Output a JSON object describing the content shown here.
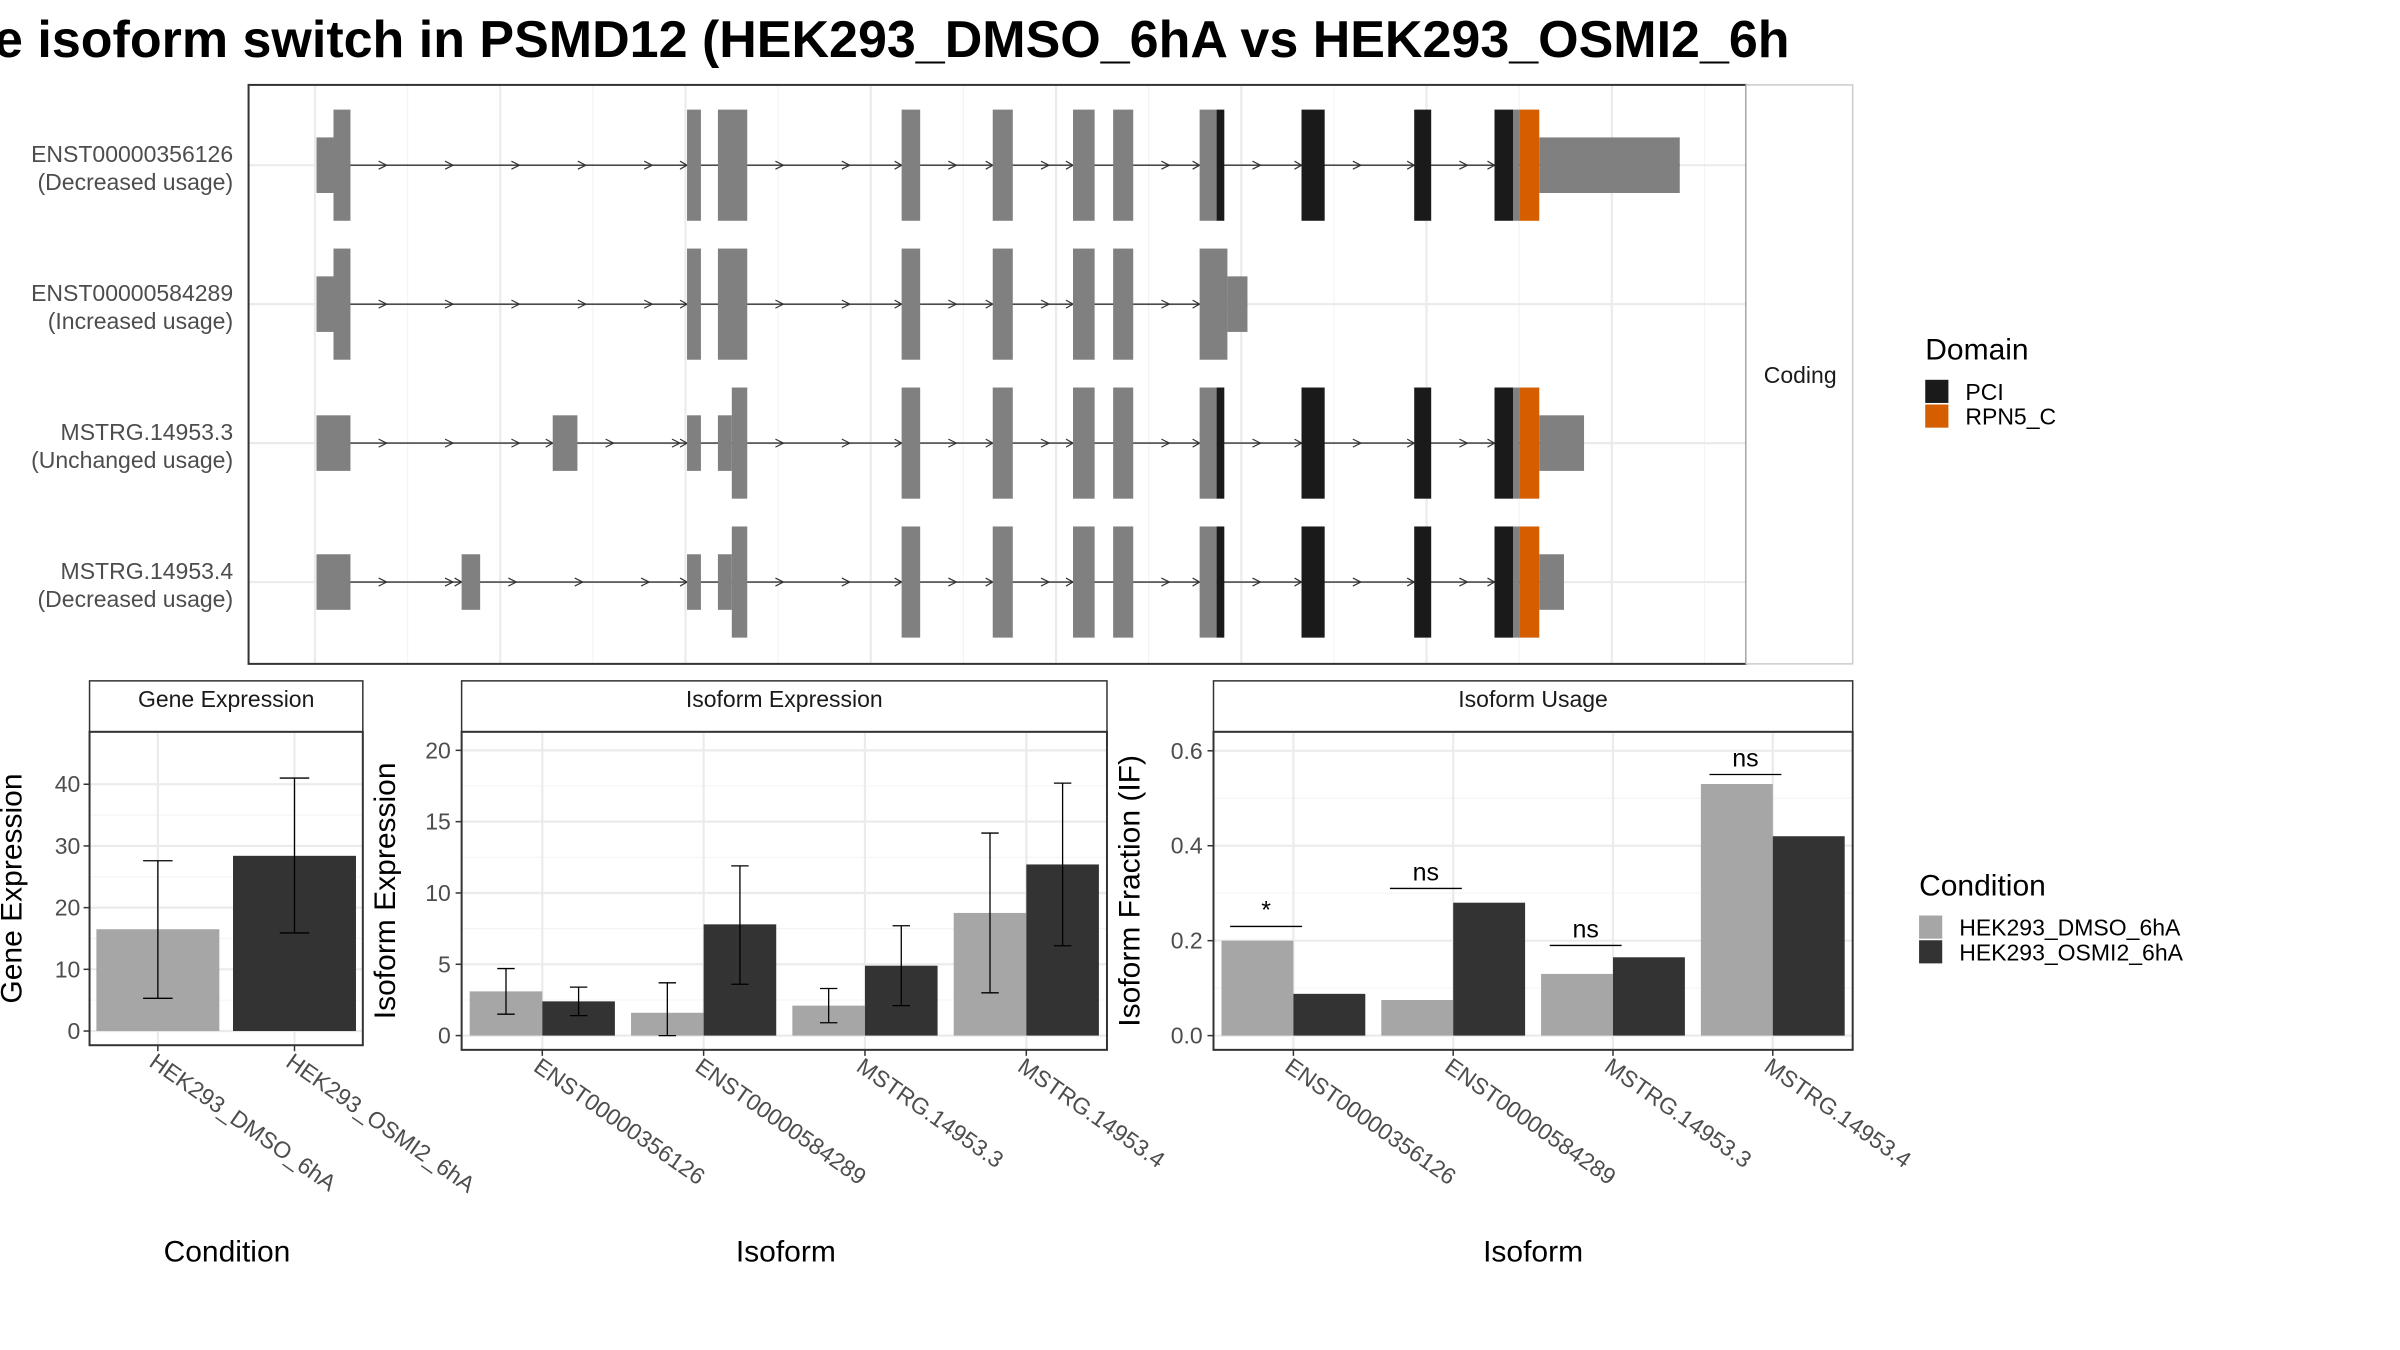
{
  "figure": {
    "title": "e isoform switch in PSMD12 (HEK293_DMSO_6hA vs HEK293_OSMI2_6h"
  },
  "structure": {
    "facet_label": "Coding",
    "domain_legend": {
      "title": "Domain",
      "items": [
        {
          "label": "PCI",
          "color": "#1a1a1a"
        },
        {
          "label": "RPN5_C",
          "color": "#d55e00"
        }
      ]
    },
    "colors": {
      "exon": "#808080",
      "intron": "#333333"
    },
    "transcripts": [
      {
        "id": "ENST00000356126",
        "usage": "(Decreased usage)",
        "exons": [
          {
            "start": 205,
            "end": 216,
            "kind": "utr"
          },
          {
            "start": 216,
            "end": 227,
            "kind": "cds"
          },
          {
            "start": 445,
            "end": 454,
            "kind": "cds"
          },
          {
            "start": 465,
            "end": 484,
            "kind": "cds"
          },
          {
            "start": 584,
            "end": 596,
            "kind": "cds"
          },
          {
            "start": 643,
            "end": 656,
            "kind": "cds"
          },
          {
            "start": 695,
            "end": 709,
            "kind": "cds"
          },
          {
            "start": 721,
            "end": 734,
            "kind": "cds"
          },
          {
            "start": 777,
            "end": 788,
            "kind": "cds"
          },
          {
            "start": 788,
            "end": 793,
            "kind": "cds",
            "domain": "PCI"
          },
          {
            "start": 843,
            "end": 858,
            "kind": "cds",
            "domain": "PCI"
          },
          {
            "start": 916,
            "end": 927,
            "kind": "cds",
            "domain": "PCI"
          },
          {
            "start": 968,
            "end": 980,
            "kind": "cds",
            "domain": "PCI"
          },
          {
            "start": 980,
            "end": 984,
            "kind": "cds"
          },
          {
            "start": 984,
            "end": 997,
            "kind": "cds",
            "domain": "RPN5_C"
          },
          {
            "start": 997,
            "end": 1088,
            "kind": "utr"
          }
        ]
      },
      {
        "id": "ENST00000584289",
        "usage": "(Increased usage)",
        "exons": [
          {
            "start": 205,
            "end": 216,
            "kind": "utr"
          },
          {
            "start": 216,
            "end": 227,
            "kind": "cds"
          },
          {
            "start": 445,
            "end": 454,
            "kind": "cds"
          },
          {
            "start": 465,
            "end": 484,
            "kind": "cds"
          },
          {
            "start": 584,
            "end": 596,
            "kind": "cds"
          },
          {
            "start": 643,
            "end": 656,
            "kind": "cds"
          },
          {
            "start": 695,
            "end": 709,
            "kind": "cds"
          },
          {
            "start": 721,
            "end": 734,
            "kind": "cds"
          },
          {
            "start": 777,
            "end": 795,
            "kind": "cds"
          },
          {
            "start": 795,
            "end": 808,
            "kind": "utr"
          }
        ]
      },
      {
        "id": "MSTRG.14953.3",
        "usage": "(Unchanged usage)",
        "exons": [
          {
            "start": 205,
            "end": 227,
            "kind": "utr"
          },
          {
            "start": 358,
            "end": 374,
            "kind": "utr"
          },
          {
            "start": 445,
            "end": 454,
            "kind": "utr"
          },
          {
            "start": 465,
            "end": 474,
            "kind": "utr"
          },
          {
            "start": 474,
            "end": 484,
            "kind": "cds"
          },
          {
            "start": 584,
            "end": 596,
            "kind": "cds"
          },
          {
            "start": 643,
            "end": 656,
            "kind": "cds"
          },
          {
            "start": 695,
            "end": 709,
            "kind": "cds"
          },
          {
            "start": 721,
            "end": 734,
            "kind": "cds"
          },
          {
            "start": 777,
            "end": 788,
            "kind": "cds"
          },
          {
            "start": 788,
            "end": 793,
            "kind": "cds",
            "domain": "PCI"
          },
          {
            "start": 843,
            "end": 858,
            "kind": "cds",
            "domain": "PCI"
          },
          {
            "start": 916,
            "end": 927,
            "kind": "cds",
            "domain": "PCI"
          },
          {
            "start": 968,
            "end": 980,
            "kind": "cds",
            "domain": "PCI"
          },
          {
            "start": 980,
            "end": 984,
            "kind": "cds"
          },
          {
            "start": 984,
            "end": 997,
            "kind": "cds",
            "domain": "RPN5_C"
          },
          {
            "start": 997,
            "end": 1026,
            "kind": "utr"
          }
        ]
      },
      {
        "id": "MSTRG.14953.4",
        "usage": "(Decreased usage)",
        "exons": [
          {
            "start": 205,
            "end": 227,
            "kind": "utr"
          },
          {
            "start": 299,
            "end": 311,
            "kind": "utr"
          },
          {
            "start": 445,
            "end": 454,
            "kind": "utr"
          },
          {
            "start": 465,
            "end": 474,
            "kind": "utr"
          },
          {
            "start": 474,
            "end": 484,
            "kind": "cds"
          },
          {
            "start": 584,
            "end": 596,
            "kind": "cds"
          },
          {
            "start": 643,
            "end": 656,
            "kind": "cds"
          },
          {
            "start": 695,
            "end": 709,
            "kind": "cds"
          },
          {
            "start": 721,
            "end": 734,
            "kind": "cds"
          },
          {
            "start": 777,
            "end": 788,
            "kind": "cds"
          },
          {
            "start": 788,
            "end": 793,
            "kind": "cds",
            "domain": "PCI"
          },
          {
            "start": 843,
            "end": 858,
            "kind": "cds",
            "domain": "PCI"
          },
          {
            "start": 916,
            "end": 927,
            "kind": "cds",
            "domain": "PCI"
          },
          {
            "start": 968,
            "end": 980,
            "kind": "cds",
            "domain": "PCI"
          },
          {
            "start": 980,
            "end": 984,
            "kind": "cds"
          },
          {
            "start": 984,
            "end": 997,
            "kind": "cds",
            "domain": "RPN5_C"
          },
          {
            "start": 997,
            "end": 1013,
            "kind": "utr"
          }
        ]
      }
    ]
  },
  "condition_legend": {
    "title": "Condition",
    "items": [
      {
        "label": "HEK293_DMSO_6hA",
        "color": "#a6a6a6"
      },
      {
        "label": "HEK293_OSMI2_6hA",
        "color": "#333333"
      }
    ]
  },
  "chart_data": [
    {
      "type": "bar",
      "title": "Gene Expression",
      "xlabel": "Condition",
      "ylabel": "Gene Expression",
      "ylim": [
        -2.3,
        48.5
      ],
      "yticks": [
        0,
        10,
        20,
        30,
        40
      ],
      "categories": [
        "HEK293_DMSO_6hA",
        "HEK293_OSMI2_6hA"
      ],
      "values": [
        16.5,
        28.4
      ],
      "err_low": [
        5.3,
        15.9
      ],
      "err_high": [
        27.6,
        41.0
      ],
      "colors": [
        "#a6a6a6",
        "#333333"
      ],
      "grid": true
    },
    {
      "type": "bar",
      "title": "Isoform Expression",
      "xlabel": "Isoform",
      "ylabel": "Isoform Expression",
      "ylim": [
        -1.0,
        21.3
      ],
      "yticks": [
        0,
        5,
        10,
        15,
        20
      ],
      "categories": [
        "ENST00000356126",
        "ENST00000584289",
        "MSTRG.14953.3",
        "MSTRG.14953.4"
      ],
      "series": [
        {
          "name": "HEK293_DMSO_6hA",
          "color": "#a6a6a6",
          "values": [
            3.1,
            1.6,
            2.1,
            8.6
          ],
          "err_low": [
            1.5,
            0.0,
            0.9,
            3.0
          ],
          "err_high": [
            4.7,
            3.7,
            3.3,
            14.2
          ]
        },
        {
          "name": "HEK293_OSMI2_6hA",
          "color": "#333333",
          "values": [
            2.4,
            7.8,
            4.9,
            12.0
          ],
          "err_low": [
            1.4,
            3.6,
            2.1,
            6.3
          ],
          "err_high": [
            3.4,
            11.9,
            7.7,
            17.7
          ]
        }
      ],
      "grid": true
    },
    {
      "type": "bar",
      "title": "Isoform Usage",
      "xlabel": "Isoform",
      "ylabel": "Isoform Fraction (IF)",
      "ylim": [
        -0.03,
        0.64
      ],
      "yticks": [
        0.0,
        0.2,
        0.4,
        0.6
      ],
      "tick_labels": [
        "0.0",
        "0.2",
        "0.4",
        "0.6"
      ],
      "categories": [
        "ENST00000356126",
        "ENST00000584289",
        "MSTRG.14953.3",
        "MSTRG.14953.4"
      ],
      "series": [
        {
          "name": "HEK293_DMSO_6hA",
          "color": "#a6a6a6",
          "values": [
            0.2,
            0.075,
            0.13,
            0.53
          ]
        },
        {
          "name": "HEK293_OSMI2_6hA",
          "color": "#333333",
          "values": [
            0.088,
            0.28,
            0.165,
            0.42
          ]
        }
      ],
      "significance": [
        {
          "label": "*",
          "y": 0.23
        },
        {
          "label": "ns",
          "y": 0.31
        },
        {
          "label": "ns",
          "y": 0.19
        },
        {
          "label": "ns",
          "y": 0.55
        }
      ],
      "grid": true
    }
  ]
}
